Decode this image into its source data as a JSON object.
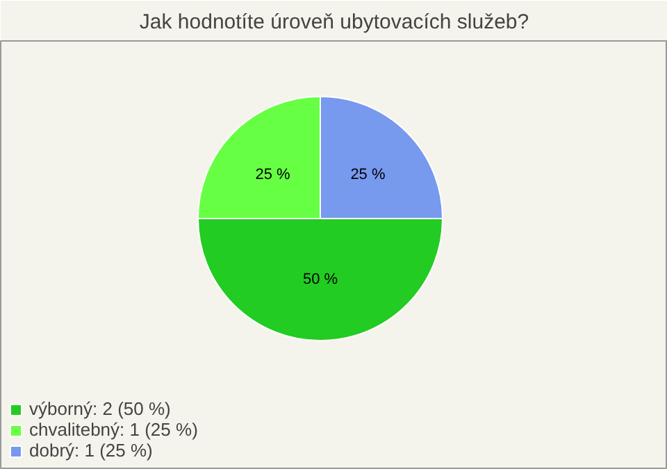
{
  "chart_data": {
    "type": "pie",
    "title": "Jak hodnotíte úroveň ubytovacích služeb?",
    "categories": [
      "výborný: 2 (50 %)",
      "chvalitebný: 1 (25 %)",
      "dobrý: 1 (25 %)"
    ],
    "values": [
      50,
      25,
      25
    ],
    "colors": [
      "#22cc22",
      "#66ff44",
      "#7799ee"
    ],
    "value_labels": [
      "50 %",
      "25 %",
      "25 %"
    ],
    "legend": "bottom left"
  }
}
